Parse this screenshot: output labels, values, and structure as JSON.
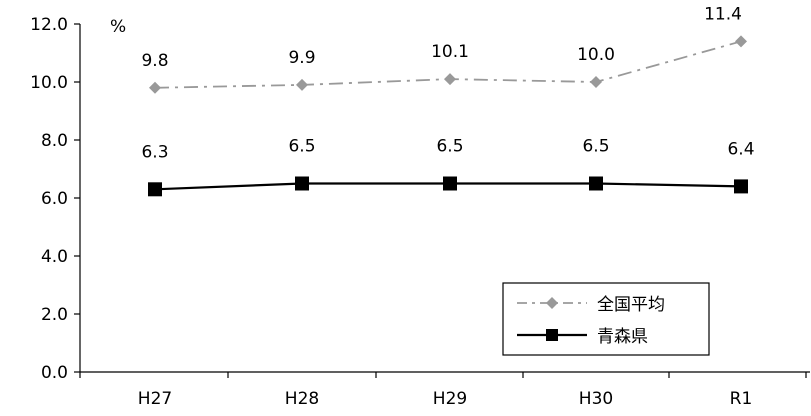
{
  "chart_data": {
    "type": "line",
    "categories": [
      "H27",
      "H28",
      "H29",
      "H30",
      "R1"
    ],
    "yunit": "%",
    "ylim": [
      0,
      12
    ],
    "yticks": [
      "0.0",
      "2.0",
      "4.0",
      "6.0",
      "8.0",
      "10.0",
      "12.0"
    ],
    "grid": false,
    "legend_position": "bottom-right",
    "series": [
      {
        "name": "全国平均",
        "values": [
          9.8,
          9.9,
          10.1,
          10.0,
          11.4
        ],
        "labels": [
          "9.8",
          "9.9",
          "10.1",
          "10.0",
          "11.4"
        ],
        "color": "#999999",
        "marker": "diamond",
        "line_style": "dash-dot"
      },
      {
        "name": "青森県",
        "values": [
          6.3,
          6.5,
          6.5,
          6.5,
          6.4
        ],
        "labels": [
          "6.3",
          "6.5",
          "6.5",
          "6.5",
          "6.4"
        ],
        "color": "#000000",
        "marker": "square",
        "line_style": "solid"
      }
    ]
  }
}
